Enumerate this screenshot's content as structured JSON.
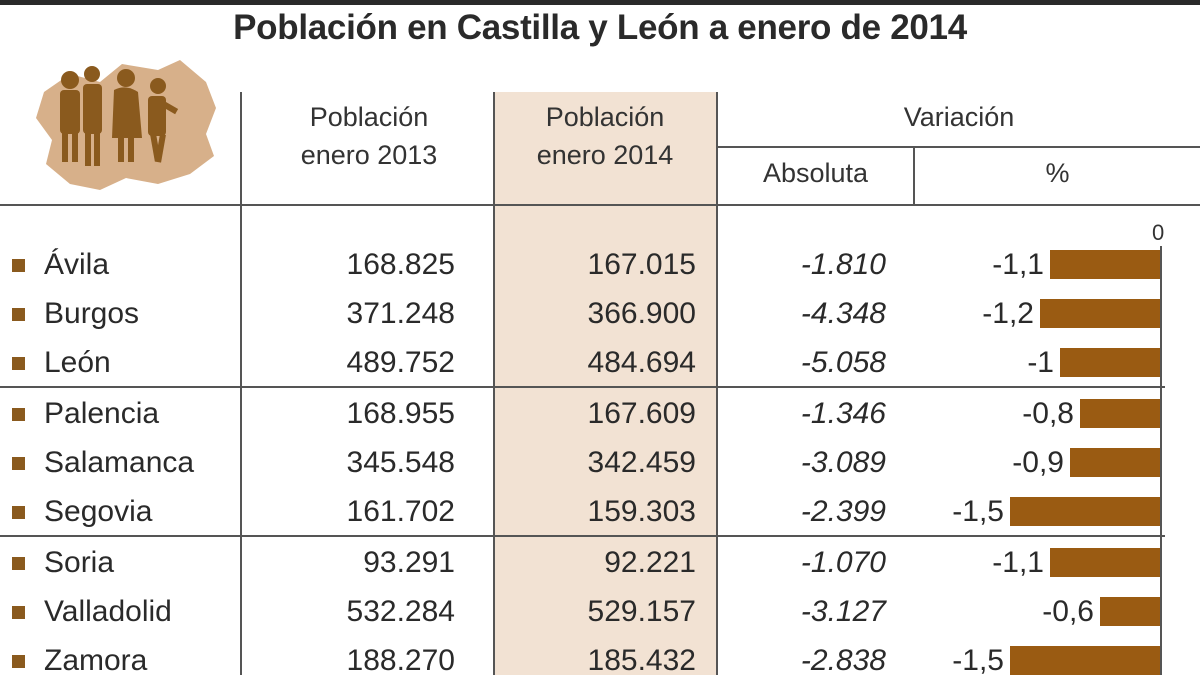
{
  "title": "Población en Castilla y León a enero de 2014",
  "chart_data": {
    "type": "table",
    "title": "Población en Castilla y León a enero de 2014",
    "columns": {
      "pop2013": [
        "Población",
        "enero 2013"
      ],
      "pop2014": [
        "Población",
        "enero 2014"
      ],
      "variation": "Variación",
      "absolute": "Absoluta",
      "percent": "%"
    },
    "bar_axis_zero": "0",
    "bar_color": "#9a5b12",
    "highlight_color": "#f2e2d3",
    "rows": [
      {
        "province": "Ávila",
        "pop2013": "168.825",
        "pop2014": "167.015",
        "absolute": "-1.810",
        "percent_label": "-1,1",
        "percent": -1.1
      },
      {
        "province": "Burgos",
        "pop2013": "371.248",
        "pop2014": "366.900",
        "absolute": "-4.348",
        "percent_label": "-1,2",
        "percent": -1.2
      },
      {
        "province": "León",
        "pop2013": "489.752",
        "pop2014": "484.694",
        "absolute": "-5.058",
        "percent_label": "-1",
        "percent": -1.0
      },
      {
        "province": "Palencia",
        "pop2013": "168.955",
        "pop2014": "167.609",
        "absolute": "-1.346",
        "percent_label": "-0,8",
        "percent": -0.8
      },
      {
        "province": "Salamanca",
        "pop2013": "345.548",
        "pop2014": "342.459",
        "absolute": "-3.089",
        "percent_label": "-0,9",
        "percent": -0.9
      },
      {
        "province": "Segovia",
        "pop2013": "161.702",
        "pop2014": "159.303",
        "absolute": "-2.399",
        "percent_label": "-1,5",
        "percent": -1.5
      },
      {
        "province": "Soria",
        "pop2013": "93.291",
        "pop2014": "92.221",
        "absolute": "-1.070",
        "percent_label": "-1,1",
        "percent": -1.1
      },
      {
        "province": "Valladolid",
        "pop2013": "532.284",
        "pop2014": "529.157",
        "absolute": "-3.127",
        "percent_label": "-0,6",
        "percent": -0.6
      },
      {
        "province": "Zamora",
        "pop2013": "188.270",
        "pop2014": "185.432",
        "absolute": "-2.838",
        "percent_label": "-1,5",
        "percent": -1.5
      }
    ]
  }
}
